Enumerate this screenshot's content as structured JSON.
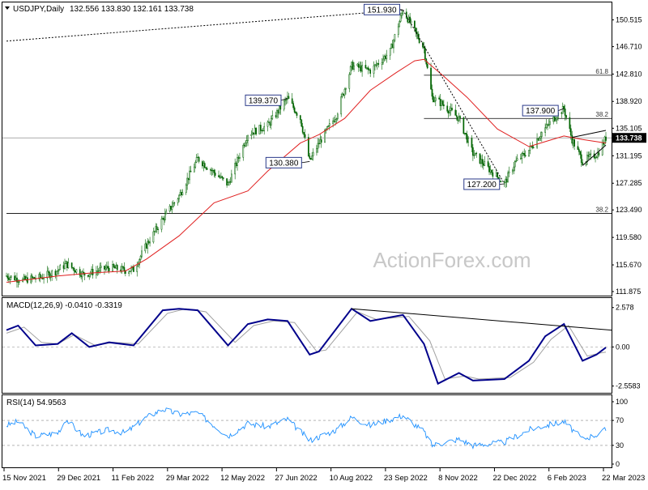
{
  "header": {
    "symbol": "USDJPY,Daily",
    "ohlc": "132.556 133.830 132.161 133.738"
  },
  "watermark": "ActionForex.com",
  "colors": {
    "price": "#006400",
    "ema": "#e02020",
    "macd": "#00008b",
    "macd_signal": "#a0a0a0",
    "rsi": "#1e90ff",
    "line": "#000000",
    "current_price_bg": "#000000"
  },
  "chart_data": [
    {
      "type": "candlestick",
      "title": "USDJPY,Daily",
      "y_axis_ticks": [
        "150.515",
        "146.710",
        "142.810",
        "138.920",
        "135.105",
        "131.195",
        "127.285",
        "123.490",
        "119.580",
        "115.670",
        "111.875"
      ],
      "ylim": [
        111.3,
        153.0
      ],
      "x_tick_labels": [
        "15 Nov 2021",
        "29 Dec 2021",
        "11 Feb 2022",
        "29 Mar 2022",
        "12 May 2022",
        "27 Jun 2022",
        "10 Aug 2022",
        "23 Sep 2022",
        "8 Nov 2022",
        "22 Dec 2022",
        "6 Feb 2023",
        "22 Mar 2023"
      ],
      "current_price": "133.738",
      "price_path": [
        {
          "d": "2021-11-15",
          "v": 114.1
        },
        {
          "d": "2021-11-29",
          "v": 113.5
        },
        {
          "d": "2021-12-15",
          "v": 113.9
        },
        {
          "d": "2021-12-29",
          "v": 114.9
        },
        {
          "d": "2022-01-05",
          "v": 115.8
        },
        {
          "d": "2022-01-20",
          "v": 114.3
        },
        {
          "d": "2022-02-11",
          "v": 115.3
        },
        {
          "d": "2022-02-25",
          "v": 114.9
        },
        {
          "d": "2022-03-04",
          "v": 115.0
        },
        {
          "d": "2022-03-15",
          "v": 118.5
        },
        {
          "d": "2022-03-29",
          "v": 122.2
        },
        {
          "d": "2022-04-12",
          "v": 125.5
        },
        {
          "d": "2022-04-28",
          "v": 130.8
        },
        {
          "d": "2022-05-12",
          "v": 128.8
        },
        {
          "d": "2022-05-24",
          "v": 127.1
        },
        {
          "d": "2022-06-10",
          "v": 134.3
        },
        {
          "d": "2022-06-27",
          "v": 135.5
        },
        {
          "d": "2022-07-14",
          "v": 139.37
        },
        {
          "d": "2022-07-25",
          "v": 136.5
        },
        {
          "d": "2022-08-02",
          "v": 130.38
        },
        {
          "d": "2022-08-10",
          "v": 133.0
        },
        {
          "d": "2022-08-25",
          "v": 137.0
        },
        {
          "d": "2022-09-07",
          "v": 144.0
        },
        {
          "d": "2022-09-23",
          "v": 143.3
        },
        {
          "d": "2022-10-10",
          "v": 146.0
        },
        {
          "d": "2022-10-21",
          "v": 151.93
        },
        {
          "d": "2022-11-08",
          "v": 146.5
        },
        {
          "d": "2022-11-15",
          "v": 139.5
        },
        {
          "d": "2022-11-24",
          "v": 138.5
        },
        {
          "d": "2022-12-08",
          "v": 136.5
        },
        {
          "d": "2022-12-20",
          "v": 131.5
        },
        {
          "d": "2023-01-16",
          "v": 127.2
        },
        {
          "d": "2023-01-25",
          "v": 130.2
        },
        {
          "d": "2023-02-06",
          "v": 132.0
        },
        {
          "d": "2023-02-17",
          "v": 134.5
        },
        {
          "d": "2023-03-02",
          "v": 137.0
        },
        {
          "d": "2023-03-08",
          "v": 137.9
        },
        {
          "d": "2023-03-15",
          "v": 133.5
        },
        {
          "d": "2023-03-24",
          "v": 130.4
        },
        {
          "d": "2023-04-06",
          "v": 131.5
        },
        {
          "d": "2023-04-13",
          "v": 133.738
        }
      ],
      "ema_path": [
        {
          "d": "2021-11-15",
          "v": 113.2
        },
        {
          "d": "2021-12-29",
          "v": 114.1
        },
        {
          "d": "2022-01-25",
          "v": 114.5
        },
        {
          "d": "2022-02-25",
          "v": 114.8
        },
        {
          "d": "2022-03-15",
          "v": 116.5
        },
        {
          "d": "2022-04-12",
          "v": 119.8
        },
        {
          "d": "2022-05-12",
          "v": 124.5
        },
        {
          "d": "2022-06-10",
          "v": 126.2
        },
        {
          "d": "2022-06-27",
          "v": 129.0
        },
        {
          "d": "2022-07-25",
          "v": 133.0
        },
        {
          "d": "2022-08-10",
          "v": 134.2
        },
        {
          "d": "2022-09-01",
          "v": 136.5
        },
        {
          "d": "2022-09-23",
          "v": 140.5
        },
        {
          "d": "2022-10-15",
          "v": 143.0
        },
        {
          "d": "2022-10-31",
          "v": 144.7
        },
        {
          "d": "2022-11-08",
          "v": 144.9
        },
        {
          "d": "2022-11-25",
          "v": 142.5
        },
        {
          "d": "2022-12-15",
          "v": 139.5
        },
        {
          "d": "2023-01-10",
          "v": 135.0
        },
        {
          "d": "2023-02-06",
          "v": 132.5
        },
        {
          "d": "2023-02-20",
          "v": 133.2
        },
        {
          "d": "2023-03-08",
          "v": 134.0
        },
        {
          "d": "2023-03-24",
          "v": 133.5
        },
        {
          "d": "2023-04-13",
          "v": 133.0
        }
      ],
      "annotations": [
        {
          "label": "151.930",
          "d": "2022-10-21",
          "v": 151.93
        },
        {
          "label": "139.370",
          "d": "2022-07-14",
          "v": 139.37
        },
        {
          "label": "130.380",
          "d": "2022-08-02",
          "v": 130.38
        },
        {
          "label": "137.900",
          "d": "2023-03-08",
          "v": 137.9
        },
        {
          "label": "127.200",
          "d": "2023-01-16",
          "v": 127.2
        }
      ],
      "levels": [
        {
          "label": "61.8",
          "v": 142.65,
          "from": "2022-11-08"
        },
        {
          "label": "38.2",
          "v": 136.5,
          "from": "2022-11-08"
        },
        {
          "label": "38.2",
          "v": 123.0,
          "from": "2021-11-15"
        }
      ],
      "current_price_line": 133.738,
      "trendlines": [
        {
          "from": {
            "d": "2021-11-15",
            "v": 147.5
          },
          "to": {
            "d": "2022-10-21",
            "v": 151.93
          },
          "style": "dotted"
        },
        {
          "from": {
            "d": "2022-10-21",
            "v": 151.93
          },
          "to": {
            "d": "2023-01-16",
            "v": 127.2
          },
          "style": "dotted"
        },
        {
          "from": {
            "d": "2023-03-15",
            "v": 133.8
          },
          "to": {
            "d": "2023-04-13",
            "v": 134.8
          },
          "style": "solid"
        },
        {
          "from": {
            "d": "2023-03-24",
            "v": 129.8
          },
          "to": {
            "d": "2023-04-13",
            "v": 132.7
          },
          "style": "solid"
        }
      ]
    },
    {
      "type": "line",
      "title": "MACD(12,26,9) -0.0410 -0.3319",
      "y_axis_ticks": [
        "2.578",
        "0.00",
        "-2.5583"
      ],
      "ylim": [
        -3.0,
        3.2
      ],
      "series": [
        {
          "color_key": "macd",
          "path": [
            {
              "d": "2021-11-15",
              "v": 1.1
            },
            {
              "d": "2021-11-25",
              "v": 1.4
            },
            {
              "d": "2021-12-10",
              "v": 0.1
            },
            {
              "d": "2021-12-29",
              "v": 0.2
            },
            {
              "d": "2022-01-10",
              "v": 0.9
            },
            {
              "d": "2022-01-25",
              "v": 0.0
            },
            {
              "d": "2022-02-11",
              "v": 0.3
            },
            {
              "d": "2022-03-04",
              "v": 0.1
            },
            {
              "d": "2022-03-29",
              "v": 2.4
            },
            {
              "d": "2022-04-12",
              "v": 2.5
            },
            {
              "d": "2022-04-28",
              "v": 2.4
            },
            {
              "d": "2022-05-24",
              "v": 0.1
            },
            {
              "d": "2022-06-10",
              "v": 1.5
            },
            {
              "d": "2022-06-27",
              "v": 1.8
            },
            {
              "d": "2022-07-14",
              "v": 1.7
            },
            {
              "d": "2022-08-02",
              "v": -0.5
            },
            {
              "d": "2022-08-10",
              "v": -0.3
            },
            {
              "d": "2022-09-07",
              "v": 2.5
            },
            {
              "d": "2022-09-23",
              "v": 1.7
            },
            {
              "d": "2022-10-21",
              "v": 2.1
            },
            {
              "d": "2022-11-08",
              "v": 0.2
            },
            {
              "d": "2022-11-20",
              "v": -2.4
            },
            {
              "d": "2022-12-08",
              "v": -1.7
            },
            {
              "d": "2022-12-20",
              "v": -2.2
            },
            {
              "d": "2023-01-16",
              "v": -2.1
            },
            {
              "d": "2023-02-06",
              "v": -0.9
            },
            {
              "d": "2023-02-20",
              "v": 0.7
            },
            {
              "d": "2023-03-08",
              "v": 1.5
            },
            {
              "d": "2023-03-24",
              "v": -0.9
            },
            {
              "d": "2023-04-05",
              "v": -0.5
            },
            {
              "d": "2023-04-13",
              "v": -0.04
            }
          ]
        },
        {
          "color_key": "macd_signal",
          "path": [
            {
              "d": "2021-11-15",
              "v": 0.9
            },
            {
              "d": "2021-11-30",
              "v": 1.3
            },
            {
              "d": "2021-12-15",
              "v": 0.3
            },
            {
              "d": "2021-12-29",
              "v": 0.2
            },
            {
              "d": "2022-01-12",
              "v": 0.8
            },
            {
              "d": "2022-01-30",
              "v": 0.1
            },
            {
              "d": "2022-02-15",
              "v": 0.3
            },
            {
              "d": "2022-03-08",
              "v": 0.2
            },
            {
              "d": "2022-04-02",
              "v": 2.2
            },
            {
              "d": "2022-04-18",
              "v": 2.5
            },
            {
              "d": "2022-05-05",
              "v": 2.3
            },
            {
              "d": "2022-05-30",
              "v": 0.3
            },
            {
              "d": "2022-06-15",
              "v": 1.4
            },
            {
              "d": "2022-07-02",
              "v": 1.7
            },
            {
              "d": "2022-07-20",
              "v": 1.6
            },
            {
              "d": "2022-08-08",
              "v": -0.3
            },
            {
              "d": "2022-08-16",
              "v": -0.2
            },
            {
              "d": "2022-09-12",
              "v": 2.3
            },
            {
              "d": "2022-09-28",
              "v": 1.8
            },
            {
              "d": "2022-10-26",
              "v": 2.0
            },
            {
              "d": "2022-11-13",
              "v": 0.4
            },
            {
              "d": "2022-11-26",
              "v": -2.1
            },
            {
              "d": "2022-12-13",
              "v": -1.9
            },
            {
              "d": "2022-12-25",
              "v": -2.1
            },
            {
              "d": "2023-01-21",
              "v": -2.0
            },
            {
              "d": "2023-02-10",
              "v": -1.0
            },
            {
              "d": "2023-02-25",
              "v": 0.5
            },
            {
              "d": "2023-03-12",
              "v": 1.4
            },
            {
              "d": "2023-03-28",
              "v": -0.6
            },
            {
              "d": "2023-04-08",
              "v": -0.4
            },
            {
              "d": "2023-04-13",
              "v": -0.3319
            }
          ]
        }
      ],
      "trendline": {
        "from": {
          "d": "2022-09-07",
          "v": 2.5
        },
        "to": {
          "d": "2023-04-13",
          "v": 1.1
        }
      },
      "zero_line": 0
    },
    {
      "type": "line",
      "title": "RSI(14) 54.9563",
      "y_axis_ticks": [
        "100",
        "70",
        "30",
        "0"
      ],
      "ylim": [
        0,
        100
      ],
      "levels": [
        70,
        30
      ],
      "series": [
        {
          "color_key": "rsi",
          "path": [
            {
              "d": "2021-11-15",
              "v": 62
            },
            {
              "d": "2021-11-25",
              "v": 68
            },
            {
              "d": "2021-12-10",
              "v": 45
            },
            {
              "d": "2021-12-29",
              "v": 50
            },
            {
              "d": "2022-01-05",
              "v": 72
            },
            {
              "d": "2022-01-20",
              "v": 45
            },
            {
              "d": "2022-02-11",
              "v": 55
            },
            {
              "d": "2022-02-25",
              "v": 50
            },
            {
              "d": "2022-03-15",
              "v": 75
            },
            {
              "d": "2022-03-29",
              "v": 88
            },
            {
              "d": "2022-04-12",
              "v": 80
            },
            {
              "d": "2022-04-28",
              "v": 82
            },
            {
              "d": "2022-05-24",
              "v": 45
            },
            {
              "d": "2022-06-10",
              "v": 65
            },
            {
              "d": "2022-06-27",
              "v": 60
            },
            {
              "d": "2022-07-14",
              "v": 72
            },
            {
              "d": "2022-08-02",
              "v": 38
            },
            {
              "d": "2022-08-25",
              "v": 55
            },
            {
              "d": "2022-09-07",
              "v": 75
            },
            {
              "d": "2022-09-23",
              "v": 62
            },
            {
              "d": "2022-10-21",
              "v": 78
            },
            {
              "d": "2022-11-08",
              "v": 52
            },
            {
              "d": "2022-11-15",
              "v": 30
            },
            {
              "d": "2022-12-08",
              "v": 40
            },
            {
              "d": "2022-12-20",
              "v": 30
            },
            {
              "d": "2023-01-16",
              "v": 35
            },
            {
              "d": "2023-02-06",
              "v": 55
            },
            {
              "d": "2023-02-20",
              "v": 62
            },
            {
              "d": "2023-03-08",
              "v": 68
            },
            {
              "d": "2023-03-24",
              "v": 40
            },
            {
              "d": "2023-04-06",
              "v": 48
            },
            {
              "d": "2023-04-13",
              "v": 54.96
            }
          ]
        }
      ]
    }
  ]
}
